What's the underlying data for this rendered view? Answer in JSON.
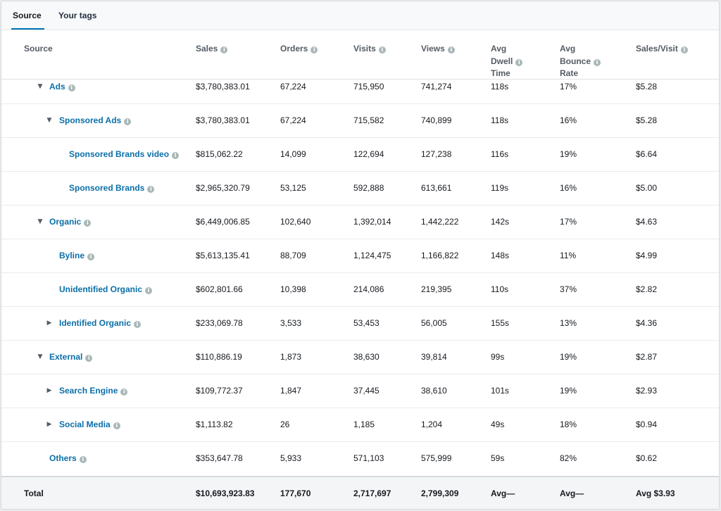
{
  "tabs": [
    {
      "label": "Source"
    },
    {
      "label": "Your tags"
    }
  ],
  "columns": {
    "source": "Source",
    "sales": "Sales",
    "orders": "Orders",
    "visits": "Visits",
    "views": "Views",
    "dwell": "Avg Dwell Time",
    "dwell_l1": "Avg",
    "dwell_l2": "Dwell",
    "dwell_l3": "Time",
    "bounce_l1": "Avg",
    "bounce_l2": "Bounce",
    "bounce_l3": "Rate",
    "sales_visit": "Sales/Visit"
  },
  "rows": [
    {
      "source": "Ads",
      "level": 1,
      "toggle": "expanded",
      "sales": "$3,780,383.01",
      "orders": "67,224",
      "visits": "715,950",
      "views": "741,274",
      "dwell": "118s",
      "bounce": "17%",
      "sales_visit": "$5.28"
    },
    {
      "source": "Sponsored Ads",
      "level": 2,
      "toggle": "expanded",
      "sales": "$3,780,383.01",
      "orders": "67,224",
      "visits": "715,582",
      "views": "740,899",
      "dwell": "118s",
      "bounce": "16%",
      "sales_visit": "$5.28"
    },
    {
      "source": "Sponsored Brands video",
      "level": 3,
      "toggle": "none",
      "sales": "$815,062.22",
      "orders": "14,099",
      "visits": "122,694",
      "views": "127,238",
      "dwell": "116s",
      "bounce": "19%",
      "sales_visit": "$6.64"
    },
    {
      "source": "Sponsored Brands",
      "level": 3,
      "toggle": "none",
      "sales": "$2,965,320.79",
      "orders": "53,125",
      "visits": "592,888",
      "views": "613,661",
      "dwell": "119s",
      "bounce": "16%",
      "sales_visit": "$5.00"
    },
    {
      "source": "Organic",
      "level": 1,
      "toggle": "expanded",
      "sales": "$6,449,006.85",
      "orders": "102,640",
      "visits": "1,392,014",
      "views": "1,442,222",
      "dwell": "142s",
      "bounce": "17%",
      "sales_visit": "$4.63"
    },
    {
      "source": "Byline",
      "level": 2,
      "toggle": "none",
      "sales": "$5,613,135.41",
      "orders": "88,709",
      "visits": "1,124,475",
      "views": "1,166,822",
      "dwell": "148s",
      "bounce": "11%",
      "sales_visit": "$4.99"
    },
    {
      "source": "Unidentified Organic",
      "level": 2,
      "toggle": "none",
      "sales": "$602,801.66",
      "orders": "10,398",
      "visits": "214,086",
      "views": "219,395",
      "dwell": "110s",
      "bounce": "37%",
      "sales_visit": "$2.82"
    },
    {
      "source": "Identified Organic",
      "level": 2,
      "toggle": "collapsed",
      "sales": "$233,069.78",
      "orders": "3,533",
      "visits": "53,453",
      "views": "56,005",
      "dwell": "155s",
      "bounce": "13%",
      "sales_visit": "$4.36"
    },
    {
      "source": "External",
      "level": 1,
      "toggle": "expanded",
      "sales": "$110,886.19",
      "orders": "1,873",
      "visits": "38,630",
      "views": "39,814",
      "dwell": "99s",
      "bounce": "19%",
      "sales_visit": "$2.87"
    },
    {
      "source": "Search Engine",
      "level": 2,
      "toggle": "collapsed",
      "sales": "$109,772.37",
      "orders": "1,847",
      "visits": "37,445",
      "views": "38,610",
      "dwell": "101s",
      "bounce": "19%",
      "sales_visit": "$2.93"
    },
    {
      "source": "Social Media",
      "level": 2,
      "toggle": "collapsed",
      "sales": "$1,113.82",
      "orders": "26",
      "visits": "1,185",
      "views": "1,204",
      "dwell": "49s",
      "bounce": "18%",
      "sales_visit": "$0.94"
    },
    {
      "source": "Others",
      "level": 1,
      "toggle": "none",
      "sales": "$353,647.78",
      "orders": "5,933",
      "visits": "571,103",
      "views": "575,999",
      "dwell": "59s",
      "bounce": "82%",
      "sales_visit": "$0.62"
    }
  ],
  "total": {
    "label": "Total",
    "sales": "$10,693,923.83",
    "orders": "177,670",
    "visits": "2,717,697",
    "views": "2,799,309",
    "dwell": "Avg—",
    "bounce": "Avg—",
    "sales_visit": "Avg $3.93"
  },
  "icons": {
    "info": "info-icon",
    "expanded": "caret-down-icon",
    "collapsed": "caret-right-icon"
  },
  "colors": {
    "link": "#0a6fa8",
    "tab_underline": "#0073bb"
  }
}
